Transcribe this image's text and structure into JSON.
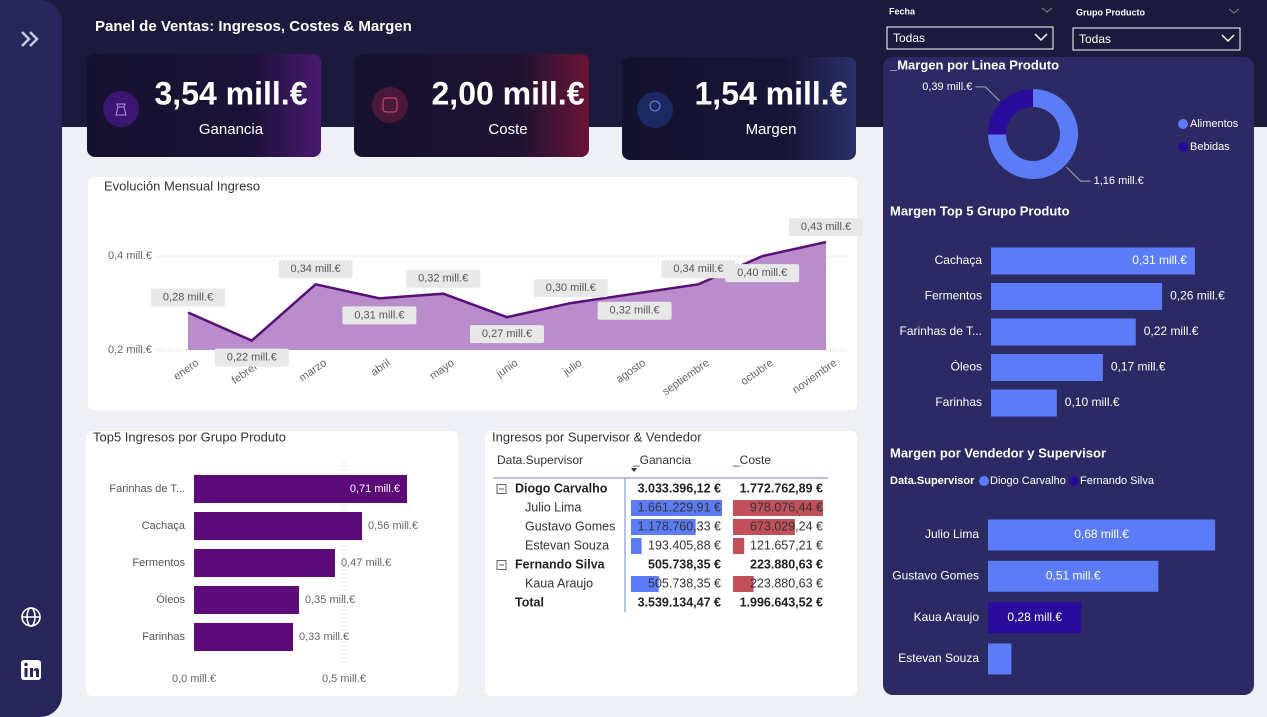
{
  "header": {
    "title": "Panel de Ventas: Ingresos, Costes & Margen"
  },
  "filters": [
    {
      "label": "Fecha",
      "value": "Todas"
    },
    {
      "label": "Grupo Producto",
      "value": "Todas"
    }
  ],
  "kpis": [
    {
      "value": "3,54 mill.€",
      "label": "Ganancia"
    },
    {
      "value": "2,00 mill.€",
      "label": "Coste"
    },
    {
      "value": "1,54 mill.€",
      "label": "Margen"
    }
  ],
  "chart_data": [
    {
      "type": "area",
      "title": "Evolución Mensual Ingreso",
      "categories": [
        "enero",
        "febrero",
        "marzo",
        "abril",
        "mayo",
        "junio",
        "julio",
        "agosto",
        "septiembre",
        "octubre",
        "noviembre"
      ],
      "values": [
        0.28,
        0.22,
        0.34,
        0.31,
        0.32,
        0.27,
        0.3,
        0.32,
        0.34,
        0.4,
        0.43
      ],
      "value_labels": [
        "0,28 mill.€",
        "0,22 mill.€",
        "0,34 mill.€",
        "0,31 mill.€",
        "0,32 mill.€",
        "0,27 mill.€",
        "0,30 mill.€",
        "0,32 mill.€",
        "0,34 mill.€",
        "0,40 mill.€",
        "0,43 mill.€"
      ],
      "color": "#5a0f78",
      "fill": "#b98ccc",
      "ylim": [
        0.2,
        0.46
      ],
      "yticks": [
        {
          "value": 0.2,
          "label": "0,2 mill.€"
        },
        {
          "value": 0.4,
          "label": "0,4 mill.€"
        }
      ],
      "grid": true
    },
    {
      "type": "bar",
      "orientation": "horizontal",
      "title": "Top5 Ingresos por Grupo Produto",
      "categories": [
        "Farinhas de T...",
        "Cachaça",
        "Fermentos",
        "Óleos",
        "Farinhas"
      ],
      "values": [
        0.71,
        0.56,
        0.47,
        0.35,
        0.33
      ],
      "value_labels": [
        "0,71 mill.€",
        "0,56 mill.€",
        "0,47 mill.€",
        "0,35 mill.€",
        "0,33 mill.€"
      ],
      "color": "#5c0a7a",
      "xlim": [
        0,
        0.8
      ],
      "xticks": [
        {
          "value": 0,
          "label": "0,0 mill.€"
        },
        {
          "value": 0.5,
          "label": "0,5 mill.€"
        }
      ],
      "grid": true
    },
    {
      "type": "donut",
      "title": "_Margen por Linea Produto",
      "categories": [
        "Alimentos",
        "Bebidas"
      ],
      "values": [
        1.16,
        0.39
      ],
      "value_labels": [
        "1,16 mill.€",
        "0,39 mill.€"
      ],
      "colors": [
        "#5b7cf6",
        "#2a0c9c"
      ],
      "legend": "right"
    },
    {
      "type": "bar",
      "orientation": "horizontal",
      "title": "Margen Top 5 Grupo Produto",
      "categories": [
        "Cachaça",
        "Fermentos",
        "Farinhas de T...",
        "Óleos",
        "Farinhas"
      ],
      "values": [
        0.31,
        0.26,
        0.22,
        0.17,
        0.1
      ],
      "value_labels": [
        "0,31 mill.€",
        "0,26 mill.€",
        "0,22 mill.€",
        "0,17 mill.€",
        "0,10 mill.€"
      ],
      "color": "#5b7cf6"
    },
    {
      "type": "stacked-bar",
      "orientation": "horizontal",
      "title": "Margen por Vendedor y Supervisor",
      "legend_title": "Data.Supervisor",
      "categories": [
        "Julio Lima",
        "Gustavo Gomes",
        "Kaua Araujo",
        "Estevan Souza"
      ],
      "series": [
        {
          "name": "Diogo Carvalho",
          "color": "#5b7cf6",
          "values": [
            0.68,
            0.51,
            null,
            0.07
          ],
          "value_labels": [
            "0,68 mill.€",
            "0,51 mill.€",
            null,
            null
          ]
        },
        {
          "name": "Fernando Silva",
          "color": "#2a0c9c",
          "values": [
            null,
            null,
            0.28,
            null
          ],
          "value_labels": [
            null,
            null,
            "0,28 mill.€",
            null
          ]
        }
      ],
      "legend": "top"
    }
  ],
  "table": {
    "title": "Ingresos por Supervisor & Vendedor",
    "columns": [
      "Data.Supervisor",
      "_Ganancia",
      "_Coste"
    ],
    "groups": [
      {
        "name": "Diogo Carvalho",
        "ganancia": "3.033.396,12 €",
        "coste": "1.772.762,89 €",
        "rows": [
          {
            "name": "Julio Lima",
            "ganancia": 1661229.91,
            "ganancia_label": "1.661.229,91 €",
            "coste": 978076.44,
            "coste_label": "978.076,44 €"
          },
          {
            "name": "Gustavo Gomes",
            "ganancia": 1178760.33,
            "ganancia_label": "1.178.760,33 €",
            "coste": 673029.24,
            "coste_label": "673.029,24 €"
          },
          {
            "name": "Estevan Souza",
            "ganancia": 193405.88,
            "ganancia_label": "193.405,88 €",
            "coste": 121657.21,
            "coste_label": "121.657,21 €"
          }
        ]
      },
      {
        "name": "Fernando Silva",
        "ganancia": "505.738,35 €",
        "coste": "223.880,63 €",
        "rows": [
          {
            "name": "Kaua Araujo",
            "ganancia": 505738.35,
            "ganancia_label": "505.738,35 €",
            "coste": 223880.63,
            "coste_label": "223.880,63 €"
          }
        ]
      }
    ],
    "total": {
      "name": "Total",
      "ganancia": "3.539.134,47 €",
      "coste": "1.996.643,52 €"
    }
  }
}
